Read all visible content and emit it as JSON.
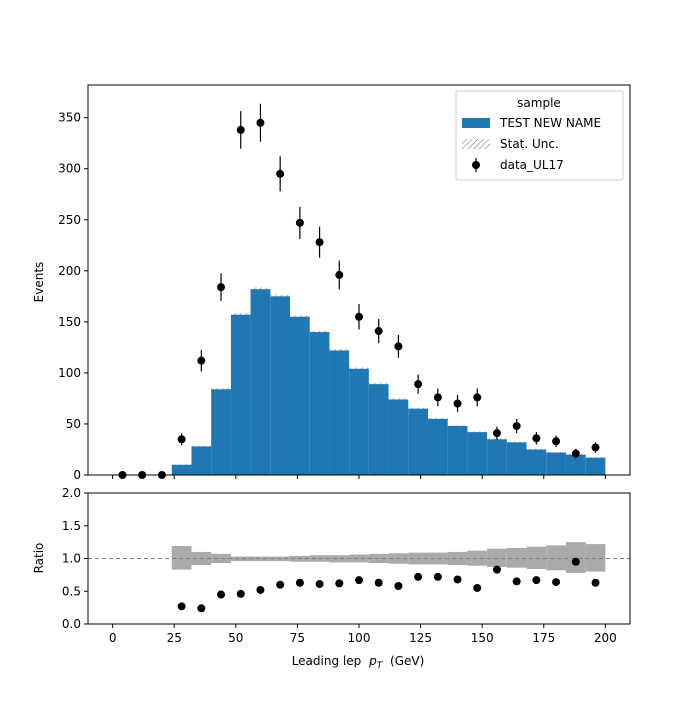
{
  "chart_data": {
    "type": "histogram",
    "xlabel": "Leading lep",
    "xlabel_sub": "p",
    "xlabel_subscript": "T",
    "xlabel_unit": "(GeV)",
    "top": {
      "ylabel": "Events",
      "xlim": [
        -10,
        210
      ],
      "ylim": [
        0,
        382
      ],
      "xticks": [
        0,
        25,
        50,
        75,
        100,
        125,
        150,
        175,
        200
      ],
      "yticks": [
        0,
        50,
        100,
        150,
        200,
        250,
        300,
        350
      ],
      "legend": {
        "title": "sample",
        "placement": "top-right",
        "entries": [
          "TEST NEW NAME",
          "Stat. Unc.",
          "data_UL17"
        ]
      },
      "series": [
        {
          "name": "TEST NEW NAME",
          "kind": "histogram",
          "color": "#1f77b4",
          "bin_edges": [
            0,
            8,
            16,
            24,
            32,
            40,
            48,
            56,
            64,
            72,
            80,
            88,
            96,
            104,
            112,
            120,
            128,
            136,
            144,
            152,
            160,
            168,
            176,
            184,
            192,
            200
          ],
          "values": [
            0,
            0,
            0,
            10,
            28,
            84,
            157,
            182,
            175,
            155,
            140,
            122,
            104,
            89,
            74,
            65,
            55,
            48,
            42,
            35,
            32,
            25,
            22,
            20,
            17
          ]
        },
        {
          "name": "data_UL17",
          "kind": "errorbar",
          "color": "#000000",
          "x": [
            4,
            12,
            20,
            28,
            36,
            44,
            52,
            60,
            68,
            76,
            84,
            92,
            100,
            108,
            116,
            124,
            132,
            140,
            148,
            156,
            164,
            172,
            180,
            188,
            196
          ],
          "y": [
            0,
            0,
            0,
            35,
            112,
            184,
            338,
            345,
            295,
            247,
            228,
            196,
            155,
            141,
            126,
            89,
            76,
            70,
            76,
            41,
            48,
            36,
            33,
            21,
            27
          ]
        }
      ]
    },
    "ratio": {
      "ylabel": "Ratio",
      "ylim": [
        0.0,
        2.0
      ],
      "yticks": [
        "0.0",
        "0.5",
        "1.0",
        "1.5",
        "2.0"
      ],
      "reference_line": 1.0,
      "unc_color": "#aaaaaa",
      "unc_lower": [
        null,
        null,
        null,
        0.83,
        0.9,
        0.93,
        0.96,
        0.96,
        0.96,
        0.95,
        0.95,
        0.94,
        0.94,
        0.93,
        0.92,
        0.91,
        0.91,
        0.9,
        0.89,
        0.87,
        0.86,
        0.84,
        0.82,
        0.78,
        0.8
      ],
      "unc_upper": [
        null,
        null,
        null,
        1.19,
        1.1,
        1.07,
        1.03,
        1.03,
        1.03,
        1.04,
        1.05,
        1.05,
        1.06,
        1.07,
        1.08,
        1.09,
        1.09,
        1.1,
        1.12,
        1.15,
        1.16,
        1.18,
        1.2,
        1.25,
        1.22
      ],
      "x": [
        28,
        36,
        44,
        52,
        60,
        68,
        76,
        84,
        92,
        100,
        108,
        116,
        124,
        132,
        140,
        148,
        156,
        164,
        172,
        180,
        188,
        196
      ],
      "values": [
        0.27,
        0.24,
        0.45,
        0.46,
        0.52,
        0.6,
        0.63,
        0.61,
        0.62,
        0.67,
        0.63,
        0.58,
        0.72,
        0.72,
        0.68,
        0.55,
        0.83,
        0.65,
        0.67,
        0.64,
        0.95,
        0.63
      ]
    }
  }
}
